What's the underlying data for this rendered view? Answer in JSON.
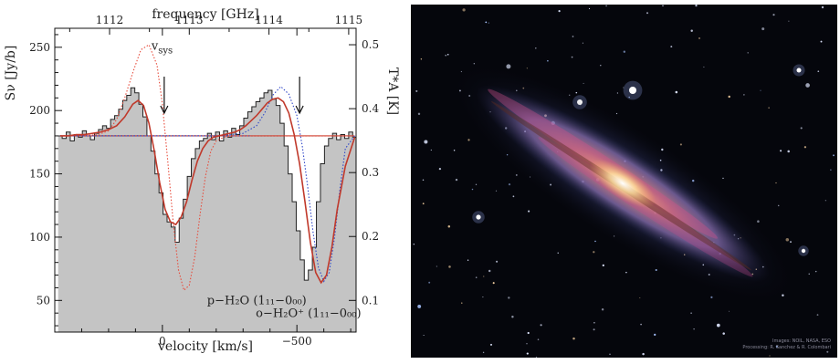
{
  "chart_data": {
    "type": "line",
    "x_axis_bottom": {
      "label": "velocity [km/s]",
      "range": [
        -720,
        400
      ],
      "ticks": [
        -500,
        0
      ],
      "tick_labels": [
        "−500",
        "0"
      ]
    },
    "x_axis_top": {
      "label": "frequency [GHz]",
      "ticks": [
        1112,
        1113,
        1114,
        1115
      ],
      "tick_labels": [
        "1112",
        "1113",
        "1114",
        "1115"
      ]
    },
    "y_axis_left": {
      "label": "Sν [Jy/b]",
      "range": [
        25,
        265
      ],
      "ticks": [
        50,
        100,
        150,
        200,
        250
      ],
      "tick_labels": [
        "50",
        "100",
        "150",
        "200",
        "250"
      ]
    },
    "y_axis_right": {
      "label": "T*A [K]",
      "ticks": [
        0.1,
        0.2,
        0.3,
        0.4,
        0.5
      ],
      "tick_labels": [
        "0.1",
        "0.2",
        "0.3",
        "0.4",
        "0.5"
      ]
    },
    "continuum": 180,
    "annotations": [
      {
        "text": "v",
        "sub": "sys",
        "x": 0,
        "y": 248
      },
      {
        "text": "p−H₂O (1₁₁−0₀₀)",
        "x": -200,
        "y": 50
      },
      {
        "text": "o−H₂O⁺ (1₁₁−0₀₀)",
        "x": -500,
        "y": 44
      }
    ],
    "arrows_at_velocity": [
      0,
      -510
    ],
    "series": [
      {
        "role": "observed spectrum (histogram, grey filled)",
        "color": "#222222",
        "fill": "#c4c4c4",
        "x": [
          380,
          365,
          350,
          335,
          320,
          305,
          290,
          275,
          260,
          245,
          230,
          215,
          200,
          185,
          170,
          155,
          140,
          125,
          110,
          95,
          80,
          65,
          50,
          35,
          20,
          5,
          -10,
          -25,
          -40,
          -55,
          -70,
          -85,
          -100,
          -115,
          -130,
          -145,
          -160,
          -175,
          -190,
          -205,
          -220,
          -235,
          -250,
          -265,
          -280,
          -295,
          -310,
          -325,
          -340,
          -355,
          -370,
          -385,
          -400,
          -415,
          -430,
          -445,
          -460,
          -475,
          -490,
          -505,
          -520,
          -535,
          -550,
          -565,
          -580,
          -595,
          -610,
          -625,
          -640,
          -655,
          -670,
          -685,
          -700,
          -715
        ],
        "y": [
          180,
          178,
          183,
          176,
          181,
          179,
          184,
          180,
          177,
          182,
          185,
          188,
          186,
          193,
          196,
          201,
          208,
          212,
          218,
          214,
          205,
          195,
          180,
          168,
          150,
          135,
          118,
          112,
          108,
          96,
          115,
          130,
          148,
          162,
          170,
          176,
          178,
          182,
          177,
          183,
          176,
          184,
          179,
          186,
          181,
          188,
          194,
          199,
          203,
          207,
          210,
          214,
          216,
          209,
          204,
          190,
          172,
          150,
          128,
          105,
          82,
          66,
          74,
          92,
          128,
          158,
          172,
          178,
          182,
          177,
          181,
          178,
          183,
          179
        ]
      },
      {
        "role": "total model fit",
        "color": "#c0392b",
        "x": [
          380,
          350,
          320,
          290,
          260,
          230,
          200,
          170,
          140,
          110,
          90,
          70,
          50,
          30,
          10,
          -10,
          -30,
          -50,
          -70,
          -90,
          -110,
          -130,
          -150,
          -170,
          -190,
          -210,
          -230,
          -250,
          -270,
          -290,
          -310,
          -330,
          -350,
          -370,
          -390,
          -410,
          -430,
          -450,
          -470,
          -490,
          -510,
          -530,
          -550,
          -570,
          -590,
          -610,
          -630,
          -650,
          -680,
          -715
        ],
        "y": [
          180,
          180,
          181,
          181,
          182,
          183,
          185,
          188,
          195,
          205,
          208,
          204,
          190,
          168,
          143,
          122,
          112,
          110,
          116,
          128,
          145,
          160,
          170,
          176,
          179,
          180,
          181,
          182,
          183,
          185,
          188,
          192,
          196,
          201,
          206,
          209,
          210,
          207,
          198,
          181,
          158,
          128,
          96,
          72,
          64,
          70,
          92,
          122,
          156,
          179
        ]
      },
      {
        "role": "p-H2O component (red dotted)",
        "color": "#e74c3c",
        "x": [
          380,
          300,
          240,
          200,
          170,
          140,
          110,
          80,
          50,
          20,
          0,
          -20,
          -40,
          -60,
          -80,
          -100,
          -120,
          -140,
          -160,
          -180,
          -200,
          -230,
          -260,
          -300,
          -360,
          -500,
          -715
        ],
        "y": [
          180,
          180,
          181,
          184,
          193,
          210,
          230,
          248,
          252,
          236,
          205,
          160,
          112,
          74,
          58,
          62,
          84,
          118,
          148,
          168,
          176,
          179,
          180,
          180,
          180,
          180,
          180
        ]
      },
      {
        "role": "o-H2O+ component (blue dotted)",
        "color": "#2e46c8",
        "x": [
          380,
          0,
          -200,
          -300,
          -350,
          -380,
          -410,
          -440,
          -470,
          -500,
          -520,
          -540,
          -560,
          -580,
          -600,
          -620,
          -640,
          -660,
          -680,
          -715
        ],
        "y": [
          180,
          180,
          180,
          182,
          188,
          198,
          212,
          219,
          213,
          196,
          172,
          140,
          104,
          76,
          65,
          72,
          100,
          138,
          170,
          180
        ]
      },
      {
        "role": "continuum baseline (red solid / blue dotted)",
        "color": "#c0392b",
        "x": [
          380,
          -715
        ],
        "y": [
          180,
          180
        ]
      }
    ]
  },
  "galaxy_image": {
    "subject": "edge-on spiral galaxy",
    "credit_lines": [
      "Images: NOIL, NASA, ESO",
      "Processing: R. Sanchez & R. Colombari"
    ]
  }
}
